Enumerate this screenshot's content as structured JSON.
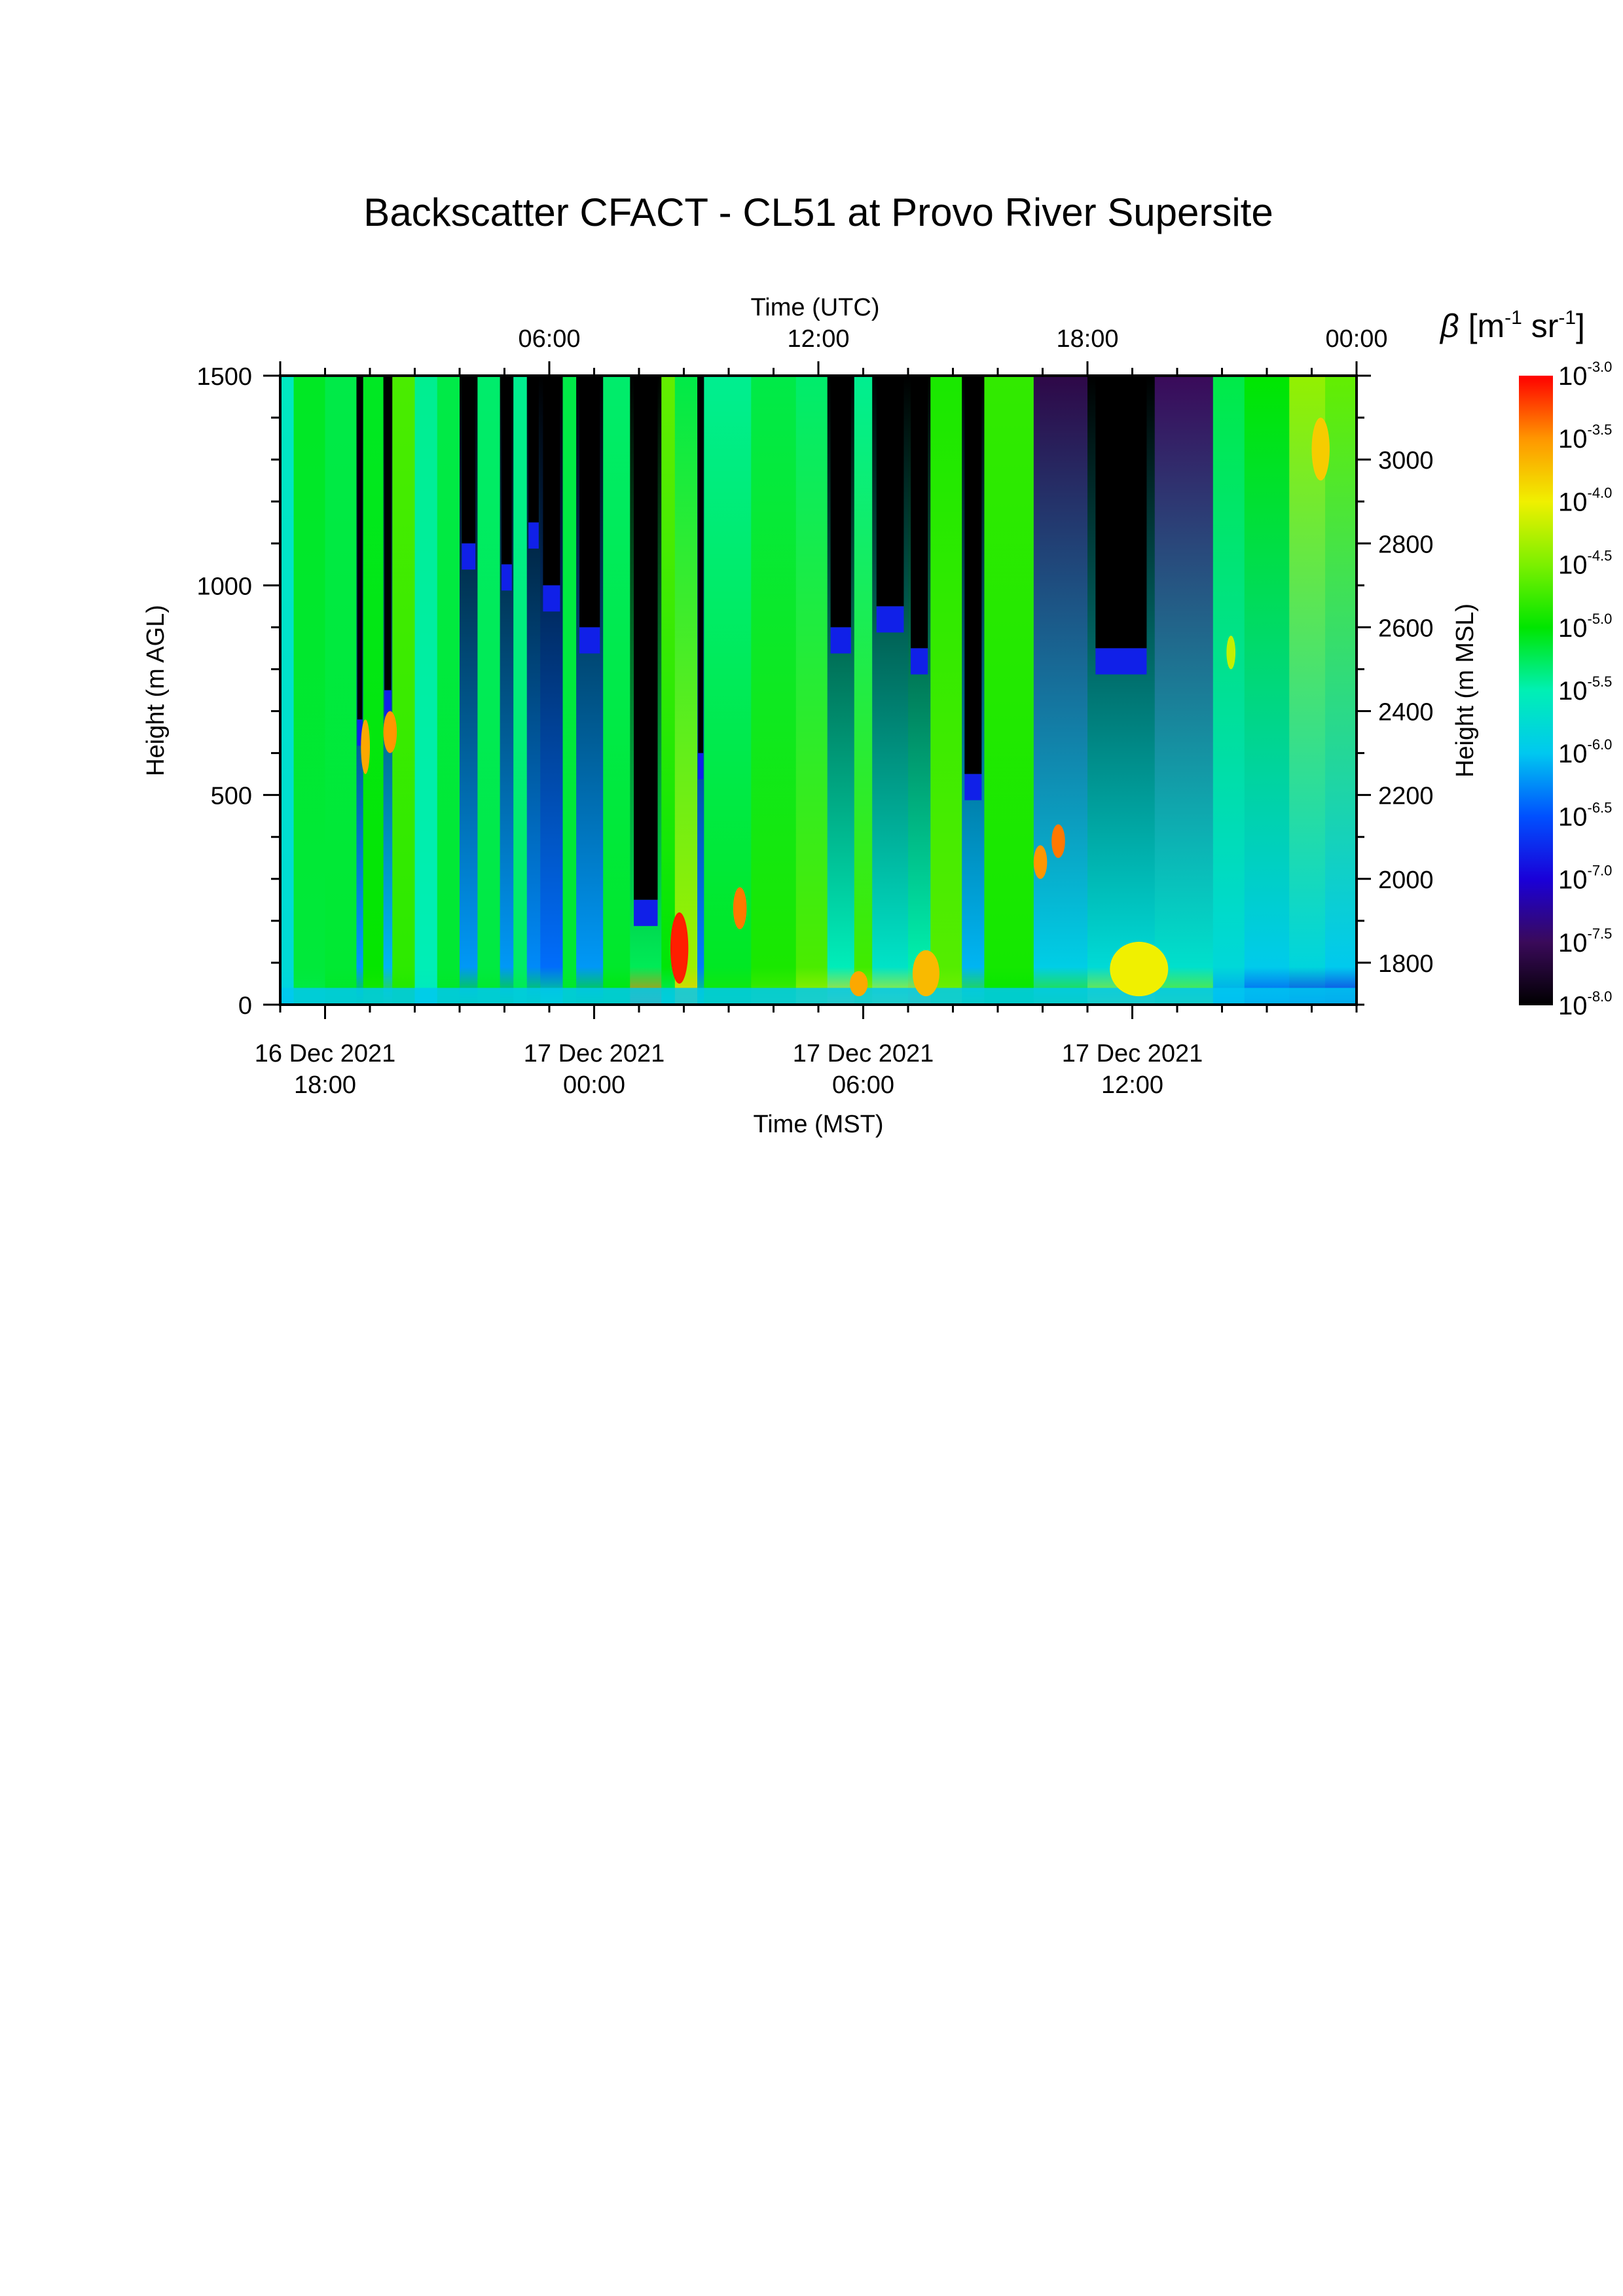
{
  "chart_data": {
    "type": "heatmap",
    "title": "Backscatter CFACT - CL51 at Provo River Supersite",
    "xlabel_bottom": "Time (MST)",
    "xlabel_top": "Time (UTC)",
    "ylabel_left": "Height (m AGL)",
    "ylabel_right": "Height (m MSL)",
    "xlim_hours_mst": [
      16.0,
      40.0
    ],
    "ylim_agl": [
      0,
      1500
    ],
    "ylim_msl": [
      1700,
      3200
    ],
    "bottom_ticks": [
      {
        "hour": 17,
        "line1": "16 Dec 2021",
        "line2": "18:00"
      },
      {
        "hour": 23,
        "line1": "17 Dec 2021",
        "line2": "00:00"
      },
      {
        "hour": 29,
        "line1": "17 Dec 2021",
        "line2": "06:00"
      },
      {
        "hour": 35,
        "line1": "17 Dec 2021",
        "line2": "12:00"
      }
    ],
    "top_ticks": [
      {
        "hour": 22,
        "label": "06:00"
      },
      {
        "hour": 28,
        "label": "12:00"
      },
      {
        "hour": 34,
        "label": "18:00"
      },
      {
        "hour": 40,
        "label": "00:00"
      }
    ],
    "left_ticks": [
      {
        "value": 0,
        "label": "0"
      },
      {
        "value": 500,
        "label": "500"
      },
      {
        "value": 1000,
        "label": "1000"
      },
      {
        "value": 1500,
        "label": "1500"
      }
    ],
    "right_ticks": [
      {
        "value": 1800,
        "label": "1800"
      },
      {
        "value": 2000,
        "label": "2000"
      },
      {
        "value": 2200,
        "label": "2200"
      },
      {
        "value": 2400,
        "label": "2400"
      },
      {
        "value": 2600,
        "label": "2600"
      },
      {
        "value": 2800,
        "label": "2800"
      },
      {
        "value": 3000,
        "label": "3000"
      }
    ],
    "colorbar": {
      "title_symbol": "β",
      "title_units_a": "[m",
      "title_exp_a": "-1",
      "title_units_b": " sr",
      "title_exp_b": "-1",
      "title_close": "]",
      "range_log10": [
        -8.0,
        -3.0
      ],
      "ticks": [
        {
          "value": -3.0,
          "base": "10",
          "exp": "-3.0"
        },
        {
          "value": -3.5,
          "base": "10",
          "exp": "-3.5"
        },
        {
          "value": -4.0,
          "base": "10",
          "exp": "-4.0"
        },
        {
          "value": -4.5,
          "base": "10",
          "exp": "-4.5"
        },
        {
          "value": -5.0,
          "base": "10",
          "exp": "-5.0"
        },
        {
          "value": -5.5,
          "base": "10",
          "exp": "-5.5"
        },
        {
          "value": -6.0,
          "base": "10",
          "exp": "-6.0"
        },
        {
          "value": -6.5,
          "base": "10",
          "exp": "-6.5"
        },
        {
          "value": -7.0,
          "base": "10",
          "exp": "-7.0"
        },
        {
          "value": -7.5,
          "base": "10",
          "exp": "-7.5"
        },
        {
          "value": -8.0,
          "base": "10",
          "exp": "-8.0"
        }
      ],
      "colors": [
        "#000000",
        "#3a0a5a",
        "#1a00d8",
        "#0050ff",
        "#00c8f0",
        "#00f0b4",
        "#00e600",
        "#7cf000",
        "#f0f000",
        "#ff9600",
        "#ff0000"
      ]
    },
    "columns": [
      {
        "t0": 16.0,
        "t1": 16.3,
        "base": -5.9,
        "top": -5.6
      },
      {
        "t0": 16.3,
        "t1": 17.0,
        "base": -5.2,
        "top": -5.1
      },
      {
        "t0": 17.0,
        "t1": 17.7,
        "base": -5.1,
        "top": -5.2
      },
      {
        "t0": 17.7,
        "t1": 17.85,
        "base": -5.0,
        "top": -8.0,
        "clear_from": 680
      },
      {
        "t0": 17.85,
        "t1": 18.3,
        "base": -4.9,
        "top": -5.1
      },
      {
        "t0": 18.3,
        "t1": 18.5,
        "base": -4.8,
        "top": -8.0,
        "clear_from": 750
      },
      {
        "t0": 18.5,
        "t1": 19.0,
        "base": -4.9,
        "top": -4.7
      },
      {
        "t0": 19.0,
        "t1": 19.5,
        "base": -5.6,
        "top": -5.4
      },
      {
        "t0": 19.5,
        "t1": 20.0,
        "base": -5.1,
        "top": -5.2
      },
      {
        "t0": 20.0,
        "t1": 20.4,
        "base": -5.0,
        "top": -8.0,
        "clear_from": 1100
      },
      {
        "t0": 20.4,
        "t1": 20.9,
        "base": -5.1,
        "top": -5.3
      },
      {
        "t0": 20.9,
        "t1": 21.2,
        "base": -5.0,
        "top": -8.0,
        "clear_from": 1050
      },
      {
        "t0": 21.2,
        "t1": 21.5,
        "base": -5.2,
        "top": -5.4
      },
      {
        "t0": 21.5,
        "t1": 21.8,
        "base": -5.1,
        "top": -8.0,
        "clear_from": 1150
      },
      {
        "t0": 21.8,
        "t1": 22.3,
        "base": -5.3,
        "top": -8.0,
        "clear_from": 1000
      },
      {
        "t0": 22.3,
        "t1": 22.6,
        "base": -5.1,
        "top": -5.2
      },
      {
        "t0": 22.6,
        "t1": 23.2,
        "base": -5.0,
        "top": -8.0,
        "clear_from": 900
      },
      {
        "t0": 23.2,
        "t1": 23.8,
        "base": -5.0,
        "top": -5.3
      },
      {
        "t0": 23.8,
        "t1": 24.5,
        "base": -3.4,
        "top": -8.0,
        "clear_from": 250
      },
      {
        "t0": 24.5,
        "t1": 24.8,
        "base": -5.3,
        "top": -4.6
      },
      {
        "t0": 24.8,
        "t1": 25.3,
        "base": -3.8,
        "top": -5.2
      },
      {
        "t0": 25.3,
        "t1": 25.45,
        "base": -5.2,
        "top": -8.0,
        "clear_from": 600
      },
      {
        "t0": 25.45,
        "t1": 26.5,
        "base": -4.9,
        "top": -5.4
      },
      {
        "t0": 26.5,
        "t1": 27.5,
        "base": -4.7,
        "top": -5.2
      },
      {
        "t0": 27.5,
        "t1": 28.2,
        "base": -4.3,
        "top": -5.3
      },
      {
        "t0": 28.2,
        "t1": 28.8,
        "base": -3.9,
        "top": -8.0,
        "clear_from": 900
      },
      {
        "t0": 28.8,
        "t1": 29.2,
        "base": -4.3,
        "top": -5.4
      },
      {
        "t0": 29.2,
        "t1": 30.0,
        "base": -4.1,
        "top": -8.0,
        "clear_from": 950
      },
      {
        "t0": 30.0,
        "t1": 30.5,
        "base": -3.8,
        "top": -8.0,
        "clear_from": 850
      },
      {
        "t0": 30.5,
        "t1": 31.2,
        "base": -4.5,
        "top": -4.9
      },
      {
        "t0": 31.2,
        "t1": 31.7,
        "base": -4.8,
        "top": -8.0,
        "clear_from": 550
      },
      {
        "t0": 31.7,
        "t1": 32.8,
        "base": -5.0,
        "top": -4.8
      },
      {
        "t0": 32.8,
        "t1": 34.0,
        "base": -4.8,
        "top": -7.6
      },
      {
        "t0": 34.0,
        "t1": 35.5,
        "base": -4.3,
        "top": -8.0,
        "clear_from": 850
      },
      {
        "t0": 35.5,
        "t1": 36.8,
        "base": -4.5,
        "top": -7.5
      },
      {
        "t0": 36.8,
        "t1": 37.5,
        "base": -6.2,
        "top": -5.2
      },
      {
        "t0": 37.5,
        "t1": 38.5,
        "base": -6.6,
        "top": -5.0
      },
      {
        "t0": 38.5,
        "t1": 39.3,
        "base": -6.8,
        "top": -4.4
      },
      {
        "t0": 39.3,
        "t1": 40.0,
        "base": -6.9,
        "top": -4.6
      }
    ],
    "features": [
      {
        "t0": 24.7,
        "t1": 25.1,
        "h0": 50,
        "h1": 220,
        "value": -3.1
      },
      {
        "t0": 26.1,
        "t1": 26.4,
        "h0": 180,
        "h1": 280,
        "value": -3.4
      },
      {
        "t0": 32.8,
        "t1": 33.1,
        "h0": 300,
        "h1": 380,
        "value": -3.5
      },
      {
        "t0": 33.2,
        "t1": 33.5,
        "h0": 350,
        "h1": 430,
        "value": -3.4
      },
      {
        "t0": 17.8,
        "t1": 18.0,
        "h0": 550,
        "h1": 680,
        "value": -3.6
      },
      {
        "t0": 18.3,
        "t1": 18.6,
        "h0": 600,
        "h1": 700,
        "value": -3.5
      },
      {
        "t0": 28.7,
        "t1": 29.1,
        "h0": 20,
        "h1": 80,
        "value": -3.6
      },
      {
        "t0": 30.1,
        "t1": 30.7,
        "h0": 20,
        "h1": 130,
        "value": -3.7
      },
      {
        "t0": 34.5,
        "t1": 35.8,
        "h0": 20,
        "h1": 150,
        "value": -4.0
      },
      {
        "t0": 37.1,
        "t1": 37.3,
        "h0": 800,
        "h1": 880,
        "value": -4.2
      },
      {
        "t0": 39.0,
        "t1": 39.4,
        "h0": 1250,
        "h1": 1400,
        "value": -3.8
      }
    ]
  }
}
